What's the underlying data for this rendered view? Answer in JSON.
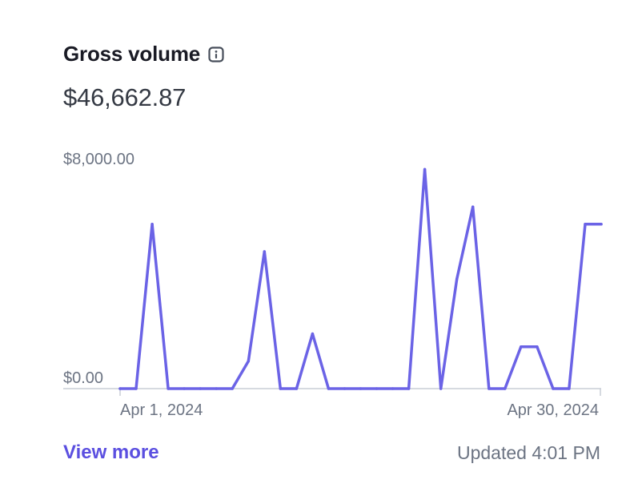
{
  "header": {
    "title": "Gross volume",
    "total": "$46,662.87"
  },
  "footer": {
    "view_more_label": "View more",
    "updated_text": "Updated 4:01 PM"
  },
  "icons": {
    "info": "info-icon"
  },
  "colors": {
    "line": "#6b63e6",
    "link": "#5b4fe0",
    "axis": "#c9cdd6",
    "muted_text": "#6c7483"
  },
  "chart_data": {
    "type": "line",
    "x": [
      "2024-03-31",
      "2024-04-01",
      "2024-04-02",
      "2024-04-03",
      "2024-04-04",
      "2024-04-05",
      "2024-04-06",
      "2024-04-07",
      "2024-04-08",
      "2024-04-09",
      "2024-04-10",
      "2024-04-11",
      "2024-04-12",
      "2024-04-13",
      "2024-04-14",
      "2024-04-15",
      "2024-04-16",
      "2024-04-17",
      "2024-04-18",
      "2024-04-19",
      "2024-04-20",
      "2024-04-21",
      "2024-04-22",
      "2024-04-23",
      "2024-04-24",
      "2024-04-25",
      "2024-04-26",
      "2024-04-27",
      "2024-04-28",
      "2024-04-29",
      "2024-04-30"
    ],
    "values": [
      0,
      0,
      5700,
      0,
      0,
      0,
      0,
      0,
      950,
      4750,
      0,
      0,
      1900,
      0,
      0,
      0,
      0,
      0,
      0,
      7600,
      0,
      3800,
      6300,
      0,
      0,
      1450,
      1450,
      0,
      0,
      5700,
      5700
    ],
    "y_tick_labels": [
      "$8,000.00",
      "$0.00"
    ],
    "x_tick_labels": [
      "Apr 1, 2024",
      "Apr 30, 2024"
    ],
    "ylim": [
      0,
      8000
    ],
    "grid": false
  }
}
